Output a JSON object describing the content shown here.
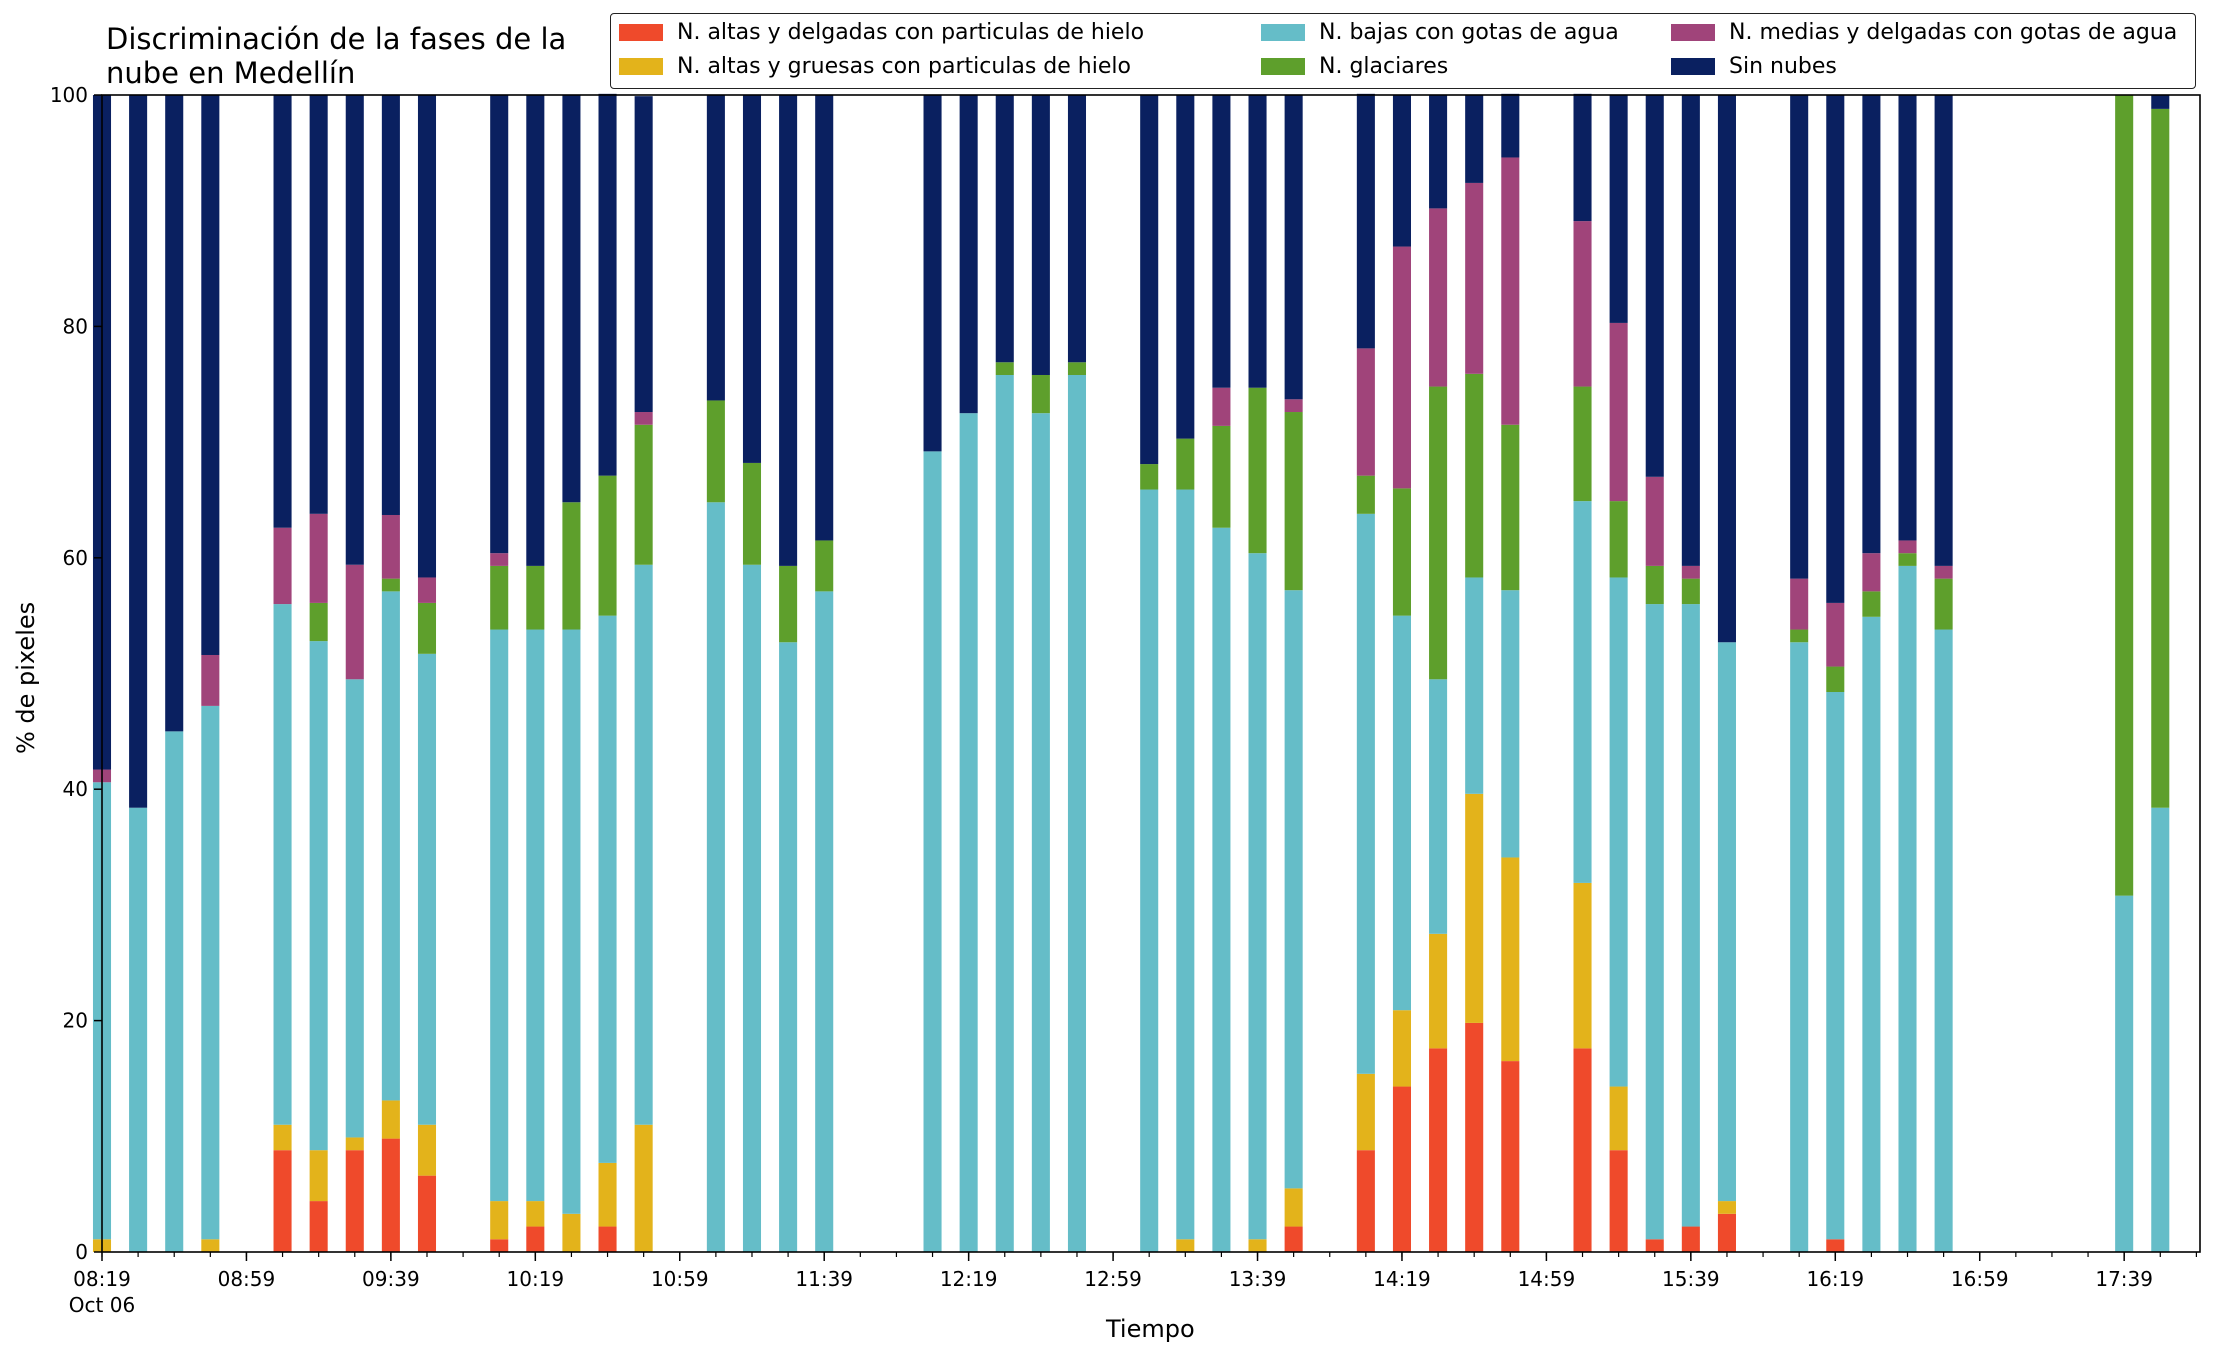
{
  "chart_data": {
    "type": "bar",
    "stacked": true,
    "title": "Discriminación de la fases de la\nnube en Medellín",
    "xlabel": "Tiempo",
    "ylabel": "% de pixeles",
    "ylim": [
      0,
      100
    ],
    "yticks": [
      0,
      20,
      40,
      60,
      80,
      100
    ],
    "grid": false,
    "legend_placement": "top-right",
    "x_tick_labels": [
      "08:19",
      "08:59",
      "09:39",
      "10:19",
      "10:59",
      "11:39",
      "12:19",
      "12:59",
      "13:39",
      "14:19",
      "14:59",
      "15:39",
      "16:19",
      "16:59",
      "17:39"
    ],
    "x_date_label": "Oct 06",
    "x_start": "08:19",
    "x_end": "18:00",
    "bar_interval_minutes": 10,
    "categories": [
      "08:19",
      "08:29",
      "08:39",
      "08:49",
      "08:59",
      "09:09",
      "09:19",
      "09:29",
      "09:39",
      "09:49",
      "09:59",
      "10:09",
      "10:19",
      "10:29",
      "10:39",
      "10:49",
      "10:59",
      "11:09",
      "11:19",
      "11:29",
      "11:39",
      "11:49",
      "11:59",
      "12:09",
      "12:19",
      "12:29",
      "12:39",
      "12:49",
      "12:59",
      "13:09",
      "13:19",
      "13:29",
      "13:39",
      "13:49",
      "13:59",
      "14:09",
      "14:19",
      "14:29",
      "14:39",
      "14:49",
      "14:59",
      "15:09",
      "15:19",
      "15:29",
      "15:39",
      "15:49",
      "15:59",
      "16:09",
      "16:19",
      "16:29",
      "16:39",
      "16:49",
      "16:59",
      "17:09",
      "17:19",
      "17:29",
      "17:39",
      "17:49"
    ],
    "series": [
      {
        "name": "N. altas y delgadas con particulas de hielo",
        "color": "#ef4a2b",
        "values": [
          0,
          0,
          0,
          0,
          0,
          8.8,
          4.4,
          8.8,
          9.8,
          6.6,
          0,
          1.1,
          2.2,
          0,
          2.2,
          0,
          0,
          0,
          0,
          0,
          0,
          0,
          0,
          0,
          0,
          0,
          0,
          0,
          0,
          0,
          0,
          0,
          0,
          2.2,
          0,
          8.8,
          14.3,
          17.6,
          19.8,
          16.5,
          0,
          17.6,
          8.8,
          1.1,
          2.2,
          3.3,
          0,
          0,
          1.1,
          0,
          0,
          0,
          0,
          0,
          0,
          0,
          0,
          0
        ]
      },
      {
        "name": "N. altas y gruesas con particulas de hielo",
        "color": "#e3b31b",
        "values": [
          1.1,
          0,
          0,
          1.1,
          0,
          2.2,
          4.4,
          1.1,
          3.3,
          4.4,
          0,
          3.3,
          2.2,
          3.3,
          5.5,
          11,
          0,
          0,
          0,
          0,
          0,
          0,
          0,
          0,
          0,
          0,
          0,
          0,
          0,
          0,
          1.1,
          0,
          1.1,
          3.3,
          0,
          6.6,
          6.6,
          9.9,
          19.8,
          17.6,
          0,
          14.3,
          5.5,
          0,
          0,
          1.1,
          0,
          0,
          0,
          0,
          0,
          0,
          0,
          0,
          0,
          0,
          0,
          0
        ]
      },
      {
        "name": "N. bajas con gotas de agua",
        "color": "#65bdc8",
        "values": [
          39.5,
          38.4,
          45,
          46.1,
          0,
          45,
          44,
          39.6,
          44,
          40.7,
          0,
          49.4,
          49.4,
          50.5,
          47.3,
          48.4,
          0,
          64.8,
          59.4,
          52.7,
          57.1,
          0,
          0,
          69.2,
          72.5,
          75.8,
          72.5,
          75.8,
          0,
          65.9,
          64.8,
          62.6,
          59.3,
          51.7,
          0,
          48.4,
          34.1,
          22,
          18.7,
          23.1,
          0,
          33,
          44,
          54.9,
          53.8,
          48.3,
          0,
          52.7,
          47.3,
          54.9,
          59.3,
          53.8,
          0,
          0,
          0,
          0,
          30.8,
          38.4
        ]
      },
      {
        "name": "N. glaciares",
        "color": "#5e9f2c",
        "values": [
          0,
          0,
          0,
          0,
          0,
          0,
          3.3,
          0,
          1.1,
          4.4,
          0,
          5.5,
          5.5,
          11,
          12.1,
          12.1,
          0,
          8.8,
          8.8,
          6.6,
          4.4,
          0,
          0,
          0,
          0,
          1.1,
          3.3,
          1.1,
          0,
          2.2,
          4.4,
          8.8,
          14.3,
          15.4,
          0,
          3.3,
          11,
          25.3,
          17.6,
          14.3,
          0,
          9.9,
          6.6,
          3.3,
          2.2,
          0,
          0,
          1.1,
          2.2,
          2.2,
          1.1,
          4.4,
          0,
          0,
          0,
          0,
          69.2,
          60.4
        ]
      },
      {
        "name": "N. medias y delgadas con gotas de agua",
        "color": "#a0447a",
        "values": [
          1.1,
          0,
          0,
          4.4,
          0,
          6.6,
          7.7,
          9.9,
          5.5,
          2.2,
          0,
          1.1,
          0,
          0,
          0,
          1.1,
          0,
          0,
          0,
          0,
          0,
          0,
          0,
          0,
          0,
          0,
          0,
          0,
          0,
          0,
          0,
          3.3,
          0,
          1.1,
          0,
          11,
          20.9,
          15.4,
          16.5,
          23.1,
          0,
          14.3,
          15.4,
          7.7,
          1.1,
          0,
          0,
          4.4,
          5.5,
          3.3,
          1.1,
          1.1,
          0,
          0,
          0,
          0,
          0,
          0
        ]
      },
      {
        "name": "Sin nubes",
        "color": "#0a2060",
        "values": [
          58.3,
          61.6,
          55,
          48.4,
          0,
          37.4,
          36.2,
          40.6,
          36.3,
          41.7,
          0,
          39.6,
          40.7,
          35.2,
          33,
          27.3,
          0,
          26.4,
          31.8,
          40.7,
          38.5,
          0,
          0,
          30.8,
          27.5,
          23.1,
          24.2,
          23.1,
          0,
          31.9,
          29.7,
          25.3,
          25.3,
          26.3,
          0,
          22,
          13.1,
          9.8,
          7.6,
          5.5,
          0,
          11,
          19.7,
          33,
          40.7,
          47.3,
          0,
          41.8,
          43.9,
          39.6,
          38.5,
          40.7,
          0,
          0,
          0,
          0,
          0,
          1.2
        ]
      }
    ]
  }
}
